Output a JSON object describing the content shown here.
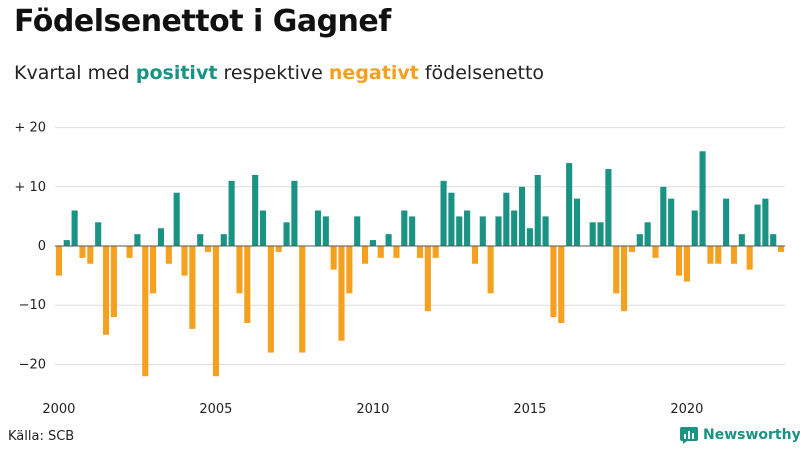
{
  "title": "Födelsenettot i Gagnef",
  "subtitle": {
    "prefix": "Kvartal med ",
    "positive_word": "positivt",
    "middle": " respektive ",
    "negative_word": "negativt",
    "suffix": " födelsenetto"
  },
  "source": "Källa: SCB",
  "brand": "Newsworthy",
  "colors": {
    "positive": "#1a9384",
    "negative": "#f4a11f",
    "grid": "#dddddd",
    "axis": "#555555"
  },
  "chart_data": {
    "type": "bar",
    "start_year": 2000,
    "start_quarter": 1,
    "ylim": [
      -24,
      22
    ],
    "yticks": [
      20,
      10,
      0,
      -10,
      -20
    ],
    "ytick_labels": [
      "+ 20",
      "+ 10",
      "0",
      "−10",
      "−20"
    ],
    "xticks": [
      2000,
      2005,
      2010,
      2015,
      2020
    ],
    "xtick_labels": [
      "2000",
      "2005",
      "2010",
      "2015",
      "2020"
    ],
    "grid": true,
    "values": [
      -5,
      1,
      6,
      -2,
      -3,
      4,
      -15,
      -12,
      0,
      -2,
      2,
      -22,
      -8,
      3,
      -3,
      9,
      -5,
      -14,
      2,
      -1,
      -22,
      2,
      11,
      -8,
      -13,
      12,
      6,
      -18,
      -1,
      4,
      11,
      -18,
      0,
      6,
      5,
      -4,
      -16,
      -8,
      5,
      -3,
      1,
      -2,
      2,
      -2,
      6,
      5,
      -2,
      -11,
      -2,
      11,
      9,
      5,
      6,
      -3,
      5,
      -8,
      5,
      9,
      6,
      10,
      3,
      12,
      5,
      -12,
      -13,
      14,
      8,
      0,
      4,
      4,
      13,
      -8,
      -11,
      -1,
      2,
      4,
      -2,
      10,
      8,
      -5,
      -6,
      6,
      16,
      -3,
      -3,
      8,
      -3,
      2,
      -4,
      7,
      8,
      2,
      -1
    ]
  }
}
